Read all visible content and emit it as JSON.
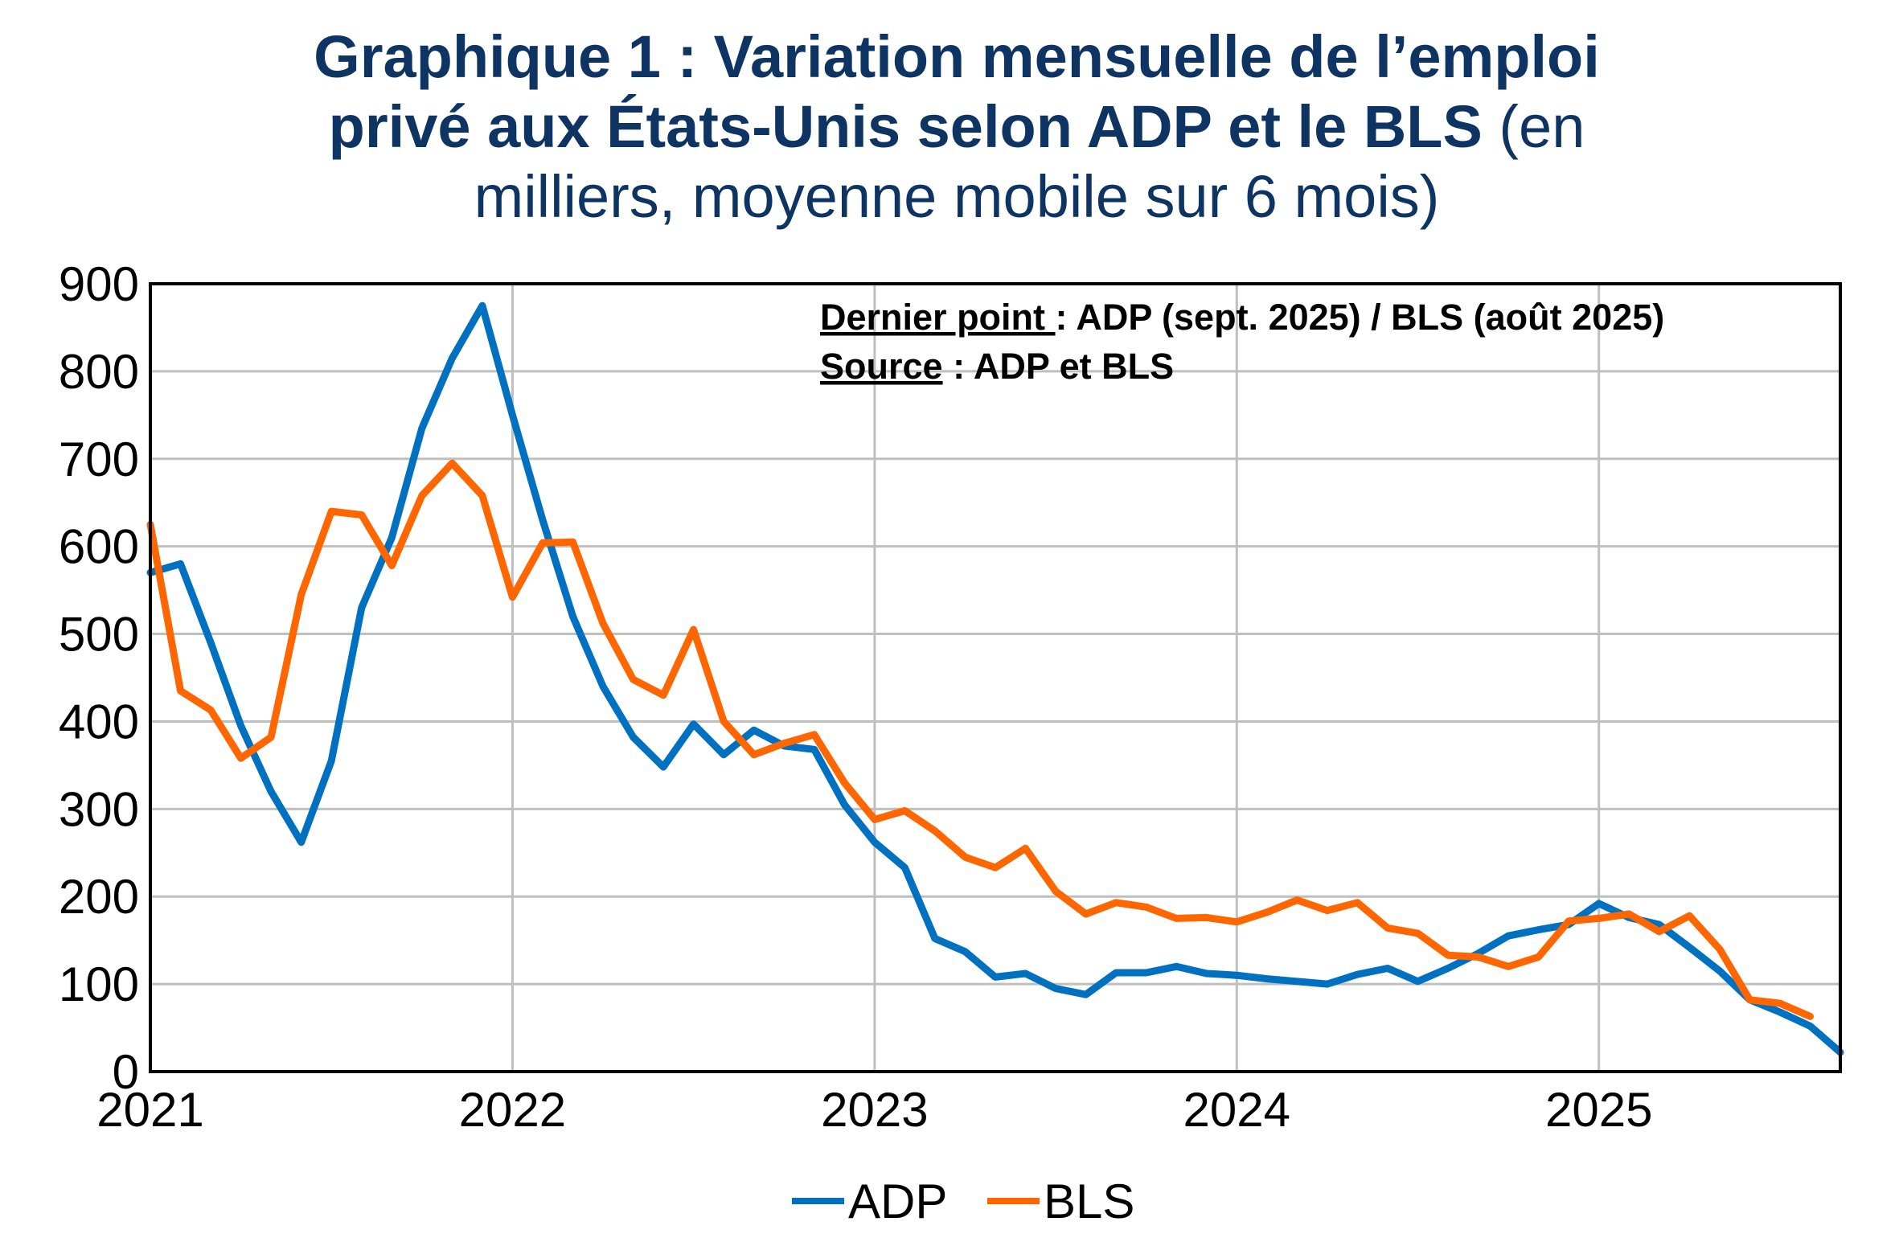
{
  "chart_data": {
    "type": "line",
    "title": {
      "line1": "Graphique 1 : Variation mensuelle de l’emploi",
      "line2_bold": "privé aux États-Unis selon ADP et le BLS",
      "line2_normal": " (en",
      "line3": "milliers, moyenne mobile sur 6 mois)"
    },
    "annotation": {
      "last_point_label": "Dernier point ",
      "last_point_text": ": ADP (sept. 2025) / BLS (août 2025)",
      "source_label": "Source",
      "source_text": " : ADP et BLS"
    },
    "x_start": "2021-01",
    "x_frequency": "monthly",
    "xlim": [
      "2021-01",
      "2025-09"
    ],
    "x_ticks": [
      "2021",
      "2022",
      "2023",
      "2024",
      "2025"
    ],
    "ylim": [
      0,
      900
    ],
    "y_ticks": [
      "0",
      "100",
      "200",
      "300",
      "400",
      "500",
      "600",
      "700",
      "800",
      "900"
    ],
    "grid": true,
    "legend": "bottom",
    "series": [
      {
        "name": "ADP",
        "color": "#0070c0",
        "values": [
          570,
          580,
          490,
          395,
          320,
          262,
          355,
          530,
          610,
          735,
          815,
          875,
          750,
          630,
          520,
          440,
          382,
          348,
          397,
          362,
          390,
          372,
          368,
          305,
          262,
          233,
          152,
          137,
          108,
          112,
          95,
          88,
          113,
          113,
          120,
          112,
          110,
          106,
          103,
          100,
          111,
          118,
          103,
          118,
          135,
          155,
          162,
          168,
          192,
          176,
          168,
          142,
          115,
          82,
          68,
          52,
          22
        ]
      },
      {
        "name": "BLS",
        "color": "#ff6600",
        "values": [
          625,
          435,
          413,
          358,
          382,
          545,
          640,
          636,
          578,
          658,
          695,
          658,
          542,
          604,
          605,
          512,
          448,
          430,
          505,
          400,
          362,
          375,
          385,
          330,
          288,
          298,
          275,
          245,
          233,
          255,
          206,
          180,
          193,
          188,
          175,
          176,
          171,
          182,
          196,
          184,
          193,
          164,
          158,
          133,
          131,
          120,
          131,
          172,
          175,
          180,
          160,
          178,
          140,
          82,
          78,
          63
        ]
      }
    ]
  }
}
